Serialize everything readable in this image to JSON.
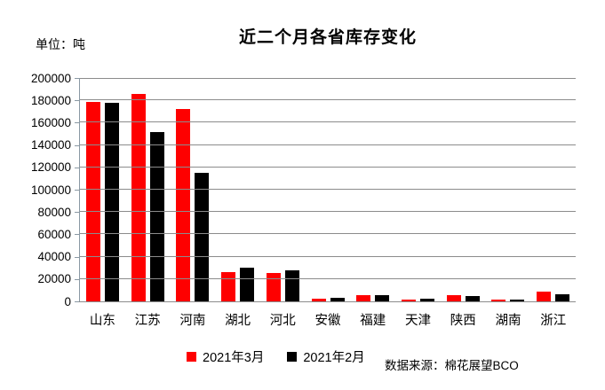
{
  "chart": {
    "unit_label": "单位：吨",
    "source": "数据来源：棉花展望BCO",
    "colors": {
      "series_march": "#fe0000",
      "series_feb": "#000000",
      "gridline": "#8c8c8c",
      "axis": "#8a98a3",
      "background": "#ffffff"
    }
  },
  "chart_data": {
    "type": "bar",
    "title": "近二个月各省库存变化",
    "categories": [
      "山东",
      "江苏",
      "河南",
      "湖北",
      "河北",
      "安徽",
      "福建",
      "天津",
      "陕西",
      "湖南",
      "浙江"
    ],
    "series": [
      {
        "name": "2021年3月",
        "color": "#fe0000",
        "values": [
          179000,
          186000,
          172000,
          26500,
          25500,
          2500,
          5500,
          1500,
          5500,
          2000,
          8500
        ]
      },
      {
        "name": "2021年2月",
        "color": "#000000",
        "values": [
          178000,
          152000,
          115000,
          30500,
          28000,
          3000,
          5500,
          2800,
          5000,
          1300,
          6000
        ]
      }
    ],
    "xlabel": "",
    "ylabel": "",
    "ylim": [
      0,
      200000
    ],
    "ytick_step": 20000,
    "yticks": [
      "0",
      "20000",
      "40000",
      "60000",
      "80000",
      "100000",
      "120000",
      "140000",
      "160000",
      "180000",
      "200000"
    ],
    "grid": true,
    "legend_position": "bottom"
  }
}
